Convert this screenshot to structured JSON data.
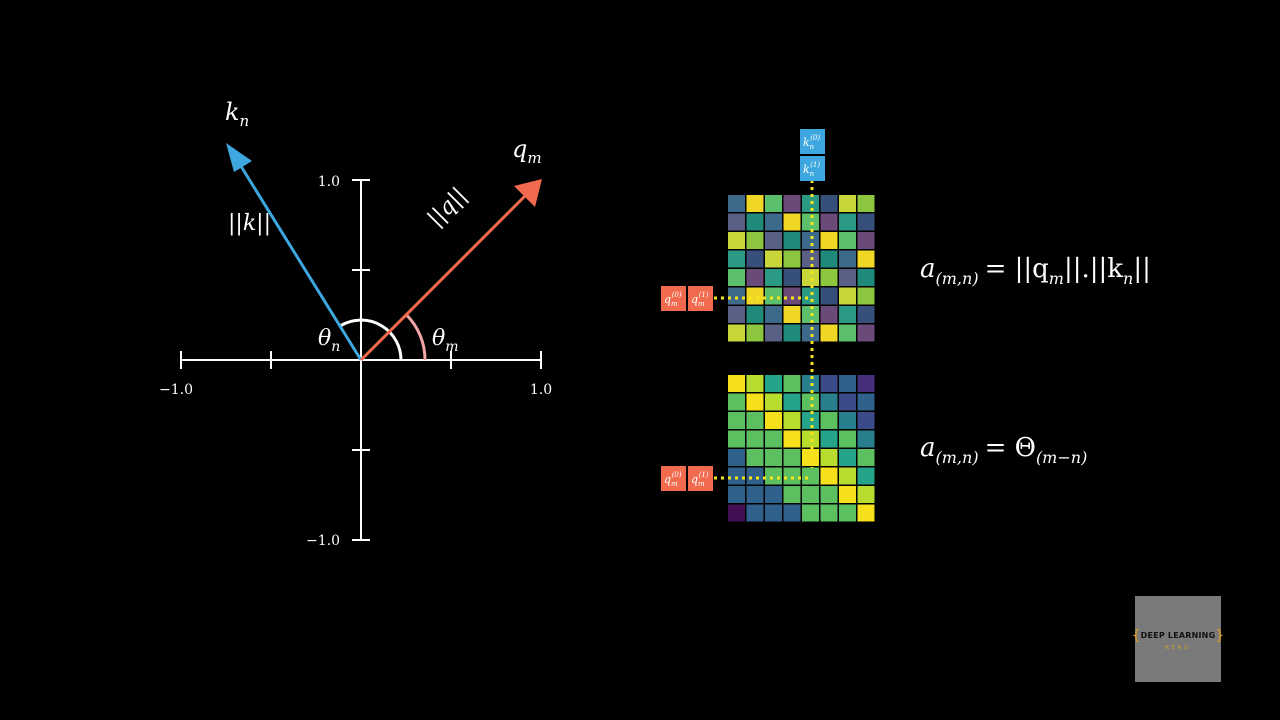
{
  "plot": {
    "x_ticks": {
      "min": "−1.0",
      "max": "1.0"
    },
    "y_ticks": {
      "min": "−1.0",
      "max": "1.0"
    },
    "k_vector": {
      "label_base": "k",
      "label_sub": "n",
      "norm_label": "||k||",
      "angle_deg": 120,
      "color": "#3fa7e0"
    },
    "q_vector": {
      "label_base": "q",
      "label_sub": "m",
      "norm_label": "||q||",
      "angle_deg": 45,
      "color": "#f26b4f"
    },
    "theta_n": {
      "base": "θ",
      "sub": "n"
    },
    "theta_m": {
      "base": "θ",
      "sub": "m"
    }
  },
  "key_boxes": [
    {
      "base": "k",
      "sub": "n",
      "sup": "(0)"
    },
    {
      "base": "k",
      "sub": "n",
      "sup": "(1)"
    }
  ],
  "query_boxes_top": [
    {
      "base": "q",
      "sub": "m",
      "sup": "(0)"
    },
    {
      "base": "q",
      "sub": "m",
      "sup": "(1)"
    }
  ],
  "query_boxes_bottom": [
    {
      "base": "q",
      "sub": "m",
      "sup": "(0)"
    },
    {
      "base": "q",
      "sub": "m",
      "sup": "(1)"
    }
  ],
  "formula_top": {
    "lhs": "a",
    "lhs_sub": "(m,n)",
    "rhs": "= ||q",
    "rhs_sub1": "m",
    "rhs_mid": "||.||k",
    "rhs_sub2": "n",
    "rhs_end": "||"
  },
  "formula_bottom": {
    "lhs": "a",
    "lhs_sub": "(m,n)",
    "rhs": "= Θ",
    "rhs_sub": "(m−n)"
  },
  "colors": {
    "key": "#3fa7e0",
    "query": "#f26b4f",
    "highlight": "#f5e51b"
  },
  "logo": {
    "name": "DEEP LEARNING",
    "sub": "HERO"
  }
}
